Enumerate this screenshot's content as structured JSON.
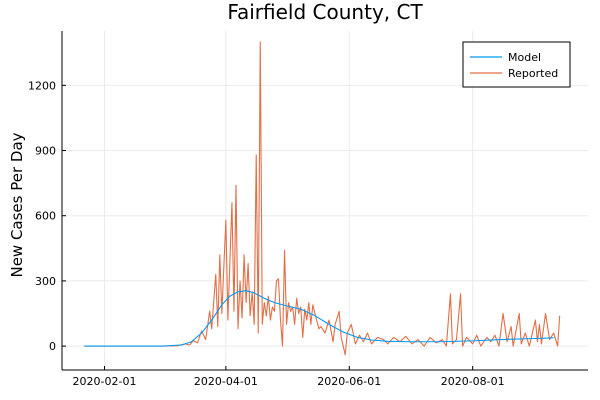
{
  "chart_data": {
    "type": "line",
    "title": "Fairfield County, CT",
    "xlabel": "",
    "ylabel": "New Cases Per Day",
    "xlim": [
      "2020-01-11",
      "2020-09-27"
    ],
    "ylim": [
      -110,
      1450
    ],
    "x_ticks": [
      "2020-02-01",
      "2020-04-01",
      "2020-06-01",
      "2020-08-01"
    ],
    "y_ticks": [
      0,
      300,
      600,
      900,
      1200
    ],
    "grid": true,
    "legend_position": "top-right",
    "series": [
      {
        "name": "Model",
        "color": "#009AFA",
        "points": [
          [
            "2020-01-22",
            0
          ],
          [
            "2020-02-15",
            0
          ],
          [
            "2020-03-01",
            0
          ],
          [
            "2020-03-10",
            5
          ],
          [
            "2020-03-15",
            20
          ],
          [
            "2020-03-20",
            60
          ],
          [
            "2020-03-25",
            120
          ],
          [
            "2020-03-30",
            190
          ],
          [
            "2020-04-03",
            230
          ],
          [
            "2020-04-07",
            250
          ],
          [
            "2020-04-11",
            255
          ],
          [
            "2020-04-15",
            245
          ],
          [
            "2020-04-20",
            220
          ],
          [
            "2020-04-25",
            200
          ],
          [
            "2020-05-01",
            185
          ],
          [
            "2020-05-08",
            170
          ],
          [
            "2020-05-15",
            140
          ],
          [
            "2020-05-22",
            100
          ],
          [
            "2020-05-29",
            65
          ],
          [
            "2020-06-05",
            40
          ],
          [
            "2020-06-12",
            28
          ],
          [
            "2020-06-20",
            22
          ],
          [
            "2020-07-01",
            20
          ],
          [
            "2020-07-15",
            20
          ],
          [
            "2020-08-01",
            24
          ],
          [
            "2020-08-15",
            30
          ],
          [
            "2020-09-01",
            35
          ],
          [
            "2020-09-10",
            38
          ]
        ]
      },
      {
        "name": "Reported",
        "color": "#E26F46",
        "points": [
          [
            "2020-01-22",
            0
          ],
          [
            "2020-02-15",
            0
          ],
          [
            "2020-03-01",
            0
          ],
          [
            "2020-03-08",
            2
          ],
          [
            "2020-03-12",
            10
          ],
          [
            "2020-03-14",
            5
          ],
          [
            "2020-03-16",
            25
          ],
          [
            "2020-03-18",
            15
          ],
          [
            "2020-03-20",
            70
          ],
          [
            "2020-03-22",
            30
          ],
          [
            "2020-03-24",
            160
          ],
          [
            "2020-03-25",
            80
          ],
          [
            "2020-03-27",
            330
          ],
          [
            "2020-03-28",
            90
          ],
          [
            "2020-03-29",
            420
          ],
          [
            "2020-03-30",
            150
          ],
          [
            "2020-04-01",
            580
          ],
          [
            "2020-04-02",
            120
          ],
          [
            "2020-04-04",
            660
          ],
          [
            "2020-04-05",
            160
          ],
          [
            "2020-04-06",
            740
          ],
          [
            "2020-04-07",
            80
          ],
          [
            "2020-04-08",
            300
          ],
          [
            "2020-04-09",
            130
          ],
          [
            "2020-04-10",
            420
          ],
          [
            "2020-04-11",
            200
          ],
          [
            "2020-04-12",
            380
          ],
          [
            "2020-04-13",
            140
          ],
          [
            "2020-04-14",
            250
          ],
          [
            "2020-04-15",
            100
          ],
          [
            "2020-04-16",
            880
          ],
          [
            "2020-04-17",
            60
          ],
          [
            "2020-04-18",
            1400
          ],
          [
            "2020-04-19",
            100
          ],
          [
            "2020-04-20",
            200
          ],
          [
            "2020-04-21",
            140
          ],
          [
            "2020-04-22",
            230
          ],
          [
            "2020-04-23",
            120
          ],
          [
            "2020-04-24",
            180
          ],
          [
            "2020-04-25",
            160
          ],
          [
            "2020-04-26",
            300
          ],
          [
            "2020-04-27",
            310
          ],
          [
            "2020-04-28",
            120
          ],
          [
            "2020-04-29",
            0
          ],
          [
            "2020-04-30",
            440
          ],
          [
            "2020-05-01",
            100
          ],
          [
            "2020-05-02",
            200
          ],
          [
            "2020-05-03",
            160
          ],
          [
            "2020-05-04",
            180
          ],
          [
            "2020-05-05",
            100
          ],
          [
            "2020-05-06",
            220
          ],
          [
            "2020-05-07",
            150
          ],
          [
            "2020-05-08",
            180
          ],
          [
            "2020-05-09",
            40
          ],
          [
            "2020-05-10",
            170
          ],
          [
            "2020-05-11",
            120
          ],
          [
            "2020-05-12",
            200
          ],
          [
            "2020-05-13",
            100
          ],
          [
            "2020-05-14",
            190
          ],
          [
            "2020-05-15",
            150
          ],
          [
            "2020-05-17",
            80
          ],
          [
            "2020-05-18",
            90
          ],
          [
            "2020-05-20",
            60
          ],
          [
            "2020-05-22",
            120
          ],
          [
            "2020-05-24",
            20
          ],
          [
            "2020-05-25",
            100
          ],
          [
            "2020-05-27",
            160
          ],
          [
            "2020-05-28",
            40
          ],
          [
            "2020-05-30",
            -40
          ],
          [
            "2020-05-31",
            60
          ],
          [
            "2020-06-02",
            100
          ],
          [
            "2020-06-04",
            10
          ],
          [
            "2020-06-06",
            50
          ],
          [
            "2020-06-08",
            20
          ],
          [
            "2020-06-10",
            60
          ],
          [
            "2020-06-12",
            10
          ],
          [
            "2020-06-15",
            40
          ],
          [
            "2020-06-18",
            30
          ],
          [
            "2020-06-20",
            10
          ],
          [
            "2020-06-23",
            40
          ],
          [
            "2020-06-26",
            20
          ],
          [
            "2020-06-29",
            45
          ],
          [
            "2020-07-02",
            10
          ],
          [
            "2020-07-05",
            30
          ],
          [
            "2020-07-08",
            0
          ],
          [
            "2020-07-11",
            40
          ],
          [
            "2020-07-14",
            15
          ],
          [
            "2020-07-17",
            30
          ],
          [
            "2020-07-19",
            0
          ],
          [
            "2020-07-21",
            240
          ],
          [
            "2020-07-22",
            10
          ],
          [
            "2020-07-24",
            30
          ],
          [
            "2020-07-26",
            240
          ],
          [
            "2020-07-27",
            0
          ],
          [
            "2020-07-29",
            40
          ],
          [
            "2020-08-01",
            10
          ],
          [
            "2020-08-03",
            50
          ],
          [
            "2020-08-05",
            0
          ],
          [
            "2020-08-08",
            40
          ],
          [
            "2020-08-10",
            20
          ],
          [
            "2020-08-12",
            50
          ],
          [
            "2020-08-14",
            0
          ],
          [
            "2020-08-16",
            150
          ],
          [
            "2020-08-18",
            20
          ],
          [
            "2020-08-20",
            90
          ],
          [
            "2020-08-21",
            0
          ],
          [
            "2020-08-24",
            150
          ],
          [
            "2020-08-25",
            10
          ],
          [
            "2020-08-27",
            60
          ],
          [
            "2020-08-29",
            0
          ],
          [
            "2020-09-01",
            120
          ],
          [
            "2020-09-02",
            20
          ],
          [
            "2020-09-03",
            100
          ],
          [
            "2020-09-04",
            10
          ],
          [
            "2020-09-06",
            150
          ],
          [
            "2020-09-08",
            30
          ],
          [
            "2020-09-10",
            60
          ],
          [
            "2020-09-12",
            0
          ],
          [
            "2020-09-13",
            140
          ]
        ]
      }
    ]
  }
}
